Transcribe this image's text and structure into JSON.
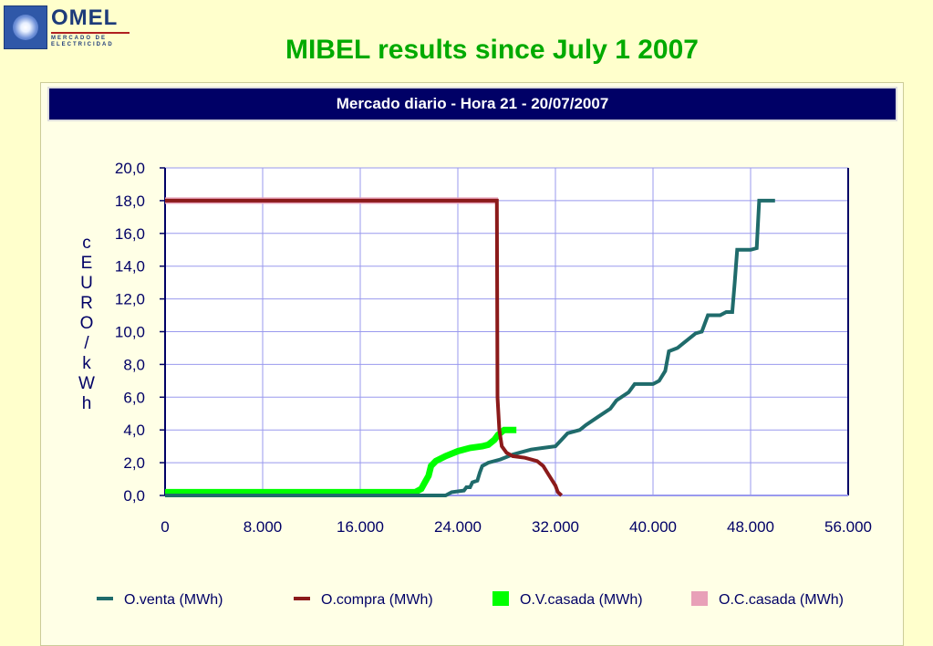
{
  "logo": {
    "word": "OMEL",
    "sub": "MERCADO DE ELECTRICIDAD"
  },
  "page_title": "MIBEL results since July 1 2007",
  "chart_data": {
    "type": "line",
    "title": "Mercado diario - Hora 21 - 20/07/2007",
    "xlabel": "",
    "ylabel": "cEURO/kWh",
    "xlim": [
      0,
      56000
    ],
    "ylim": [
      0,
      20
    ],
    "grid": true,
    "legend_position": "bottom",
    "x_ticks": [
      0,
      8000,
      16000,
      24000,
      32000,
      40000,
      48000,
      56000
    ],
    "x_tick_labels": [
      "0",
      "8.000",
      "16.000",
      "24.000",
      "32.000",
      "40.000",
      "48.000",
      "56.000"
    ],
    "y_ticks": [
      0,
      2,
      4,
      6,
      8,
      10,
      12,
      14,
      16,
      18,
      20
    ],
    "y_tick_labels": [
      "0,0",
      "2,0",
      "4,0",
      "6,0",
      "8,0",
      "10,0",
      "12,0",
      "14,0",
      "16,0",
      "18,0",
      "20,0"
    ],
    "series": [
      {
        "name": "O.venta (MWh)",
        "color": "#1F6B6B",
        "width": 4,
        "points": [
          [
            0,
            0
          ],
          [
            23000,
            0
          ],
          [
            23500,
            0.2
          ],
          [
            24500,
            0.3
          ],
          [
            24700,
            0.5
          ],
          [
            25000,
            0.5
          ],
          [
            25200,
            0.8
          ],
          [
            25600,
            0.9
          ],
          [
            25800,
            1.4
          ],
          [
            26000,
            1.8
          ],
          [
            26500,
            2.0
          ],
          [
            27500,
            2.2
          ],
          [
            28500,
            2.5
          ],
          [
            29000,
            2.6
          ],
          [
            30000,
            2.8
          ],
          [
            31000,
            2.9
          ],
          [
            32000,
            3.0
          ],
          [
            32500,
            3.4
          ],
          [
            33000,
            3.8
          ],
          [
            34000,
            4.0
          ],
          [
            34500,
            4.3
          ],
          [
            35500,
            4.8
          ],
          [
            36500,
            5.3
          ],
          [
            37000,
            5.8
          ],
          [
            38000,
            6.3
          ],
          [
            38500,
            6.8
          ],
          [
            40000,
            6.8
          ],
          [
            40500,
            7.0
          ],
          [
            41000,
            7.6
          ],
          [
            41300,
            8.8
          ],
          [
            42000,
            9.0
          ],
          [
            42500,
            9.3
          ],
          [
            43000,
            9.6
          ],
          [
            43500,
            9.9
          ],
          [
            44000,
            10.0
          ],
          [
            44500,
            11.0
          ],
          [
            45500,
            11.0
          ],
          [
            46000,
            11.2
          ],
          [
            46500,
            11.2
          ],
          [
            46700,
            13.0
          ],
          [
            46900,
            15.0
          ],
          [
            48000,
            15.0
          ],
          [
            48500,
            15.1
          ],
          [
            48700,
            18.0
          ],
          [
            50000,
            18.0
          ]
        ]
      },
      {
        "name": "O.compra (MWh)",
        "color": "#8B1A1A",
        "width": 4,
        "points": [
          [
            0,
            18.0
          ],
          [
            27200,
            18.0
          ],
          [
            27250,
            6.0
          ],
          [
            27400,
            4.0
          ],
          [
            27600,
            3.0
          ],
          [
            28000,
            2.6
          ],
          [
            28500,
            2.4
          ],
          [
            29500,
            2.3
          ],
          [
            30500,
            2.1
          ],
          [
            31000,
            1.8
          ],
          [
            31500,
            1.2
          ],
          [
            32000,
            0.6
          ],
          [
            32200,
            0.2
          ],
          [
            32500,
            0
          ]
        ]
      },
      {
        "name": "O.V.casada (MWh)",
        "color": "#00FF00",
        "width": 7,
        "points": [
          [
            0,
            0.2
          ],
          [
            20500,
            0.2
          ],
          [
            21000,
            0.4
          ],
          [
            21300,
            0.8
          ],
          [
            21600,
            1.2
          ],
          [
            21800,
            1.8
          ],
          [
            22200,
            2.1
          ],
          [
            23000,
            2.4
          ],
          [
            24000,
            2.7
          ],
          [
            25000,
            2.9
          ],
          [
            26000,
            3.0
          ],
          [
            26500,
            3.1
          ],
          [
            27000,
            3.4
          ],
          [
            27300,
            3.7
          ],
          [
            27800,
            4.0
          ],
          [
            28800,
            4.0
          ]
        ]
      },
      {
        "name": "O.C.casada (MWh)",
        "color": "#E8A0B8",
        "width": 7,
        "points": [
          [
            0,
            18.0
          ],
          [
            27300,
            18.0
          ]
        ]
      }
    ]
  }
}
